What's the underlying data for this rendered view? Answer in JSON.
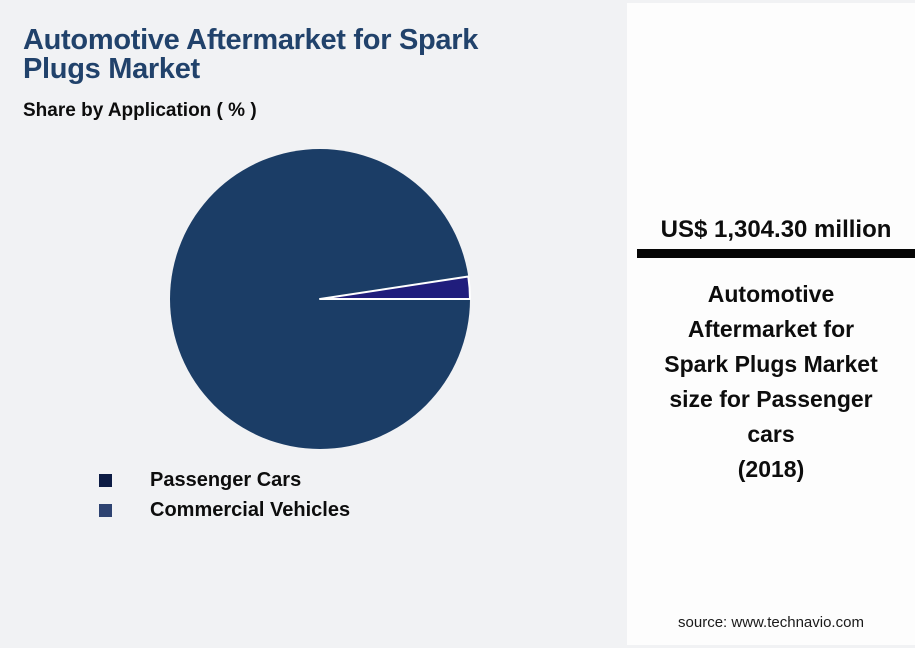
{
  "page": {
    "background_color": "#f1f2f4",
    "panel_background_color": "#fdfdfd"
  },
  "header": {
    "title": "Automotive Aftermarket for Spark\nPlugs Market",
    "title_color": "#21426b",
    "subtitle": "Share by Application ( % )"
  },
  "chart_data": {
    "type": "pie",
    "title": "Automotive Aftermarket for Spark Plugs Market",
    "subtitle": "Share by Application ( % )",
    "categories": [
      "Passenger Cars",
      "Commercial Vehicles"
    ],
    "values": [
      97.6,
      2.4
    ],
    "colors": [
      "#1b3d66",
      "#201d7c"
    ],
    "slice_border_color": "#ffffff",
    "data_labels": "none",
    "legend_position": "bottom-left",
    "legend": [
      {
        "label": "Passenger Cars",
        "swatch_color": "#0d1c44"
      },
      {
        "label": "Commercial Vehicles",
        "swatch_color": "#2e4371"
      }
    ]
  },
  "panel": {
    "value": "US$ 1,304.30 million",
    "divider_color": "#050505",
    "description": "Automotive\nAftermarket for\nSpark Plugs Market\nsize for Passenger\ncars\n(2018)",
    "source": "source: www.technavio.com"
  }
}
